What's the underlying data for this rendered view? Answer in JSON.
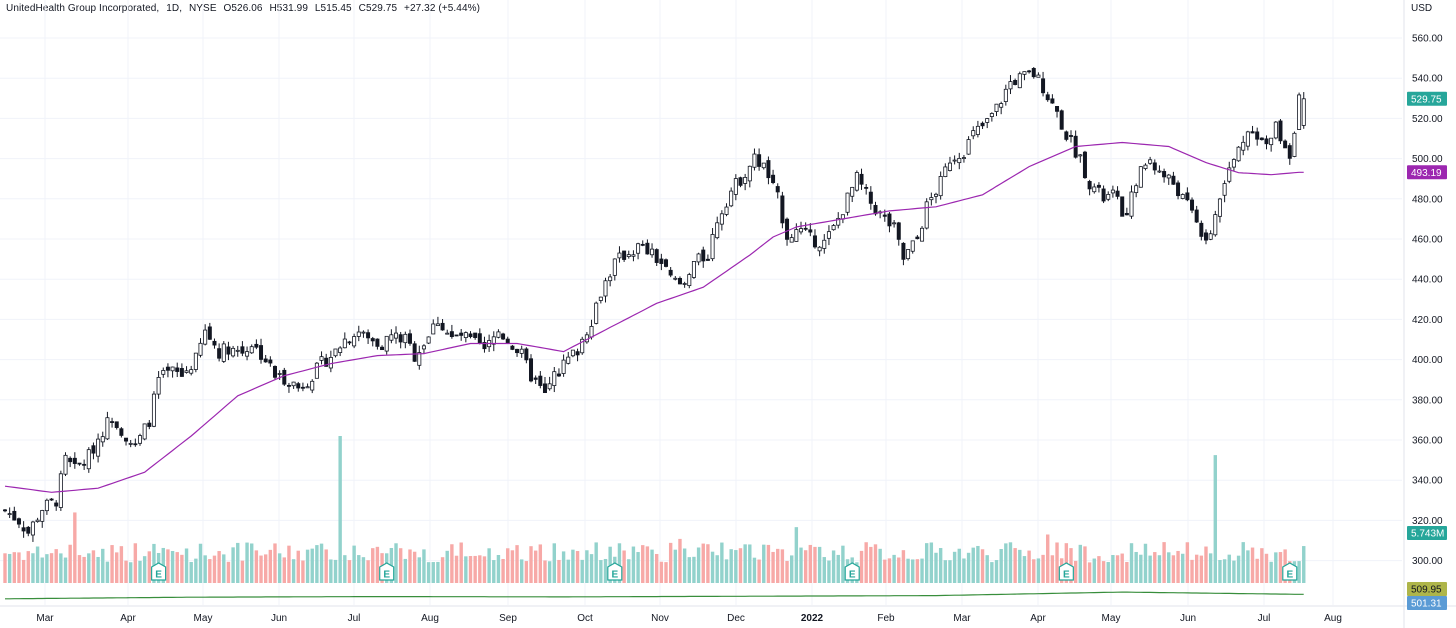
{
  "legend": {
    "symbol": "UnitedHealth Group Incorporated",
    "interval": "1D",
    "exchange": "NYSE",
    "open": "O526.06",
    "high": "H531.99",
    "low": "L515.45",
    "close": "C529.75",
    "change": "+27.32 (+5.44%)"
  },
  "currency": "USD",
  "colors": {
    "up": "#26a69a",
    "down": "#ef5350",
    "wick": "#131722",
    "ma": "#9c27b0",
    "volume_ma": "#388e3c",
    "grid": "#f0f3fa",
    "volume_up": "#92d2cc",
    "volume_down": "#f7a9a7"
  },
  "chart_data": {
    "type": "candlestick",
    "title": "UnitedHealth Group Incorporated, 1D, NYSE",
    "x_tick_labels": [
      "Mar",
      "Apr",
      "May",
      "Jun",
      "Jul",
      "Aug",
      "Sep",
      "Oct",
      "Nov",
      "Dec",
      "2022",
      "Feb",
      "Mar",
      "Apr",
      "May",
      "Jun",
      "Jul",
      "Aug"
    ],
    "y_tick_labels": [
      "300.00",
      "320.00",
      "340.00",
      "360.00",
      "380.00",
      "400.00",
      "420.00",
      "440.00",
      "460.00",
      "480.00",
      "500.00",
      "520.00",
      "540.00",
      "560.00"
    ],
    "ylim": [
      290,
      568
    ],
    "close_path": [
      [
        0,
        325
      ],
      [
        3,
        320
      ],
      [
        5,
        314
      ],
      [
        8,
        326
      ],
      [
        11,
        330
      ],
      [
        13,
        350
      ],
      [
        15,
        345
      ],
      [
        18,
        352
      ],
      [
        21,
        365
      ],
      [
        23,
        372
      ],
      [
        26,
        362
      ],
      [
        28,
        356
      ],
      [
        31,
        370
      ],
      [
        33,
        390
      ],
      [
        36,
        394
      ],
      [
        38,
        392
      ],
      [
        41,
        400
      ],
      [
        43,
        414
      ],
      [
        46,
        404
      ],
      [
        48,
        406
      ],
      [
        51,
        404
      ],
      [
        53,
        408
      ],
      [
        56,
        400
      ],
      [
        58,
        392
      ],
      [
        61,
        390
      ],
      [
        63,
        386
      ],
      [
        66,
        392
      ],
      [
        68,
        398
      ],
      [
        71,
        404
      ],
      [
        73,
        410
      ],
      [
        76,
        414
      ],
      [
        78,
        410
      ],
      [
        81,
        408
      ],
      [
        83,
        412
      ],
      [
        86,
        410
      ],
      [
        88,
        402
      ],
      [
        91,
        412
      ],
      [
        93,
        420
      ],
      [
        96,
        410
      ],
      [
        98,
        412
      ],
      [
        101,
        408
      ],
      [
        103,
        404
      ],
      [
        106,
        414
      ],
      [
        108,
        410
      ],
      [
        111,
        402
      ],
      [
        113,
        392
      ],
      [
        116,
        382
      ],
      [
        118,
        392
      ],
      [
        121,
        400
      ],
      [
        123,
        405
      ],
      [
        126,
        420
      ],
      [
        128,
        434
      ],
      [
        131,
        448
      ],
      [
        133,
        452
      ],
      [
        136,
        456
      ],
      [
        138,
        454
      ],
      [
        141,
        448
      ],
      [
        143,
        440
      ],
      [
        146,
        436
      ],
      [
        148,
        448
      ],
      [
        151,
        452
      ],
      [
        153,
        470
      ],
      [
        156,
        484
      ],
      [
        158,
        490
      ],
      [
        161,
        500
      ],
      [
        163,
        496
      ],
      [
        166,
        480
      ],
      [
        168,
        462
      ],
      [
        171,
        464
      ],
      [
        173,
        460
      ],
      [
        176,
        458
      ],
      [
        178,
        465
      ],
      [
        181,
        480
      ],
      [
        183,
        490
      ],
      [
        186,
        478
      ],
      [
        188,
        472
      ],
      [
        191,
        465
      ],
      [
        193,
        450
      ],
      [
        196,
        460
      ],
      [
        198,
        476
      ],
      [
        201,
        488
      ],
      [
        203,
        500
      ],
      [
        206,
        504
      ],
      [
        208,
        512
      ],
      [
        211,
        518
      ],
      [
        213,
        525
      ],
      [
        216,
        538
      ],
      [
        218,
        540
      ],
      [
        221,
        542
      ],
      [
        223,
        536
      ],
      [
        226,
        522
      ],
      [
        228,
        512
      ],
      [
        231,
        500
      ],
      [
        233,
        488
      ],
      [
        236,
        480
      ],
      [
        238,
        482
      ],
      [
        241,
        470
      ],
      [
        243,
        490
      ],
      [
        246,
        500
      ],
      [
        248,
        493
      ],
      [
        251,
        488
      ],
      [
        253,
        480
      ],
      [
        256,
        470
      ],
      [
        258,
        456
      ],
      [
        261,
        480
      ],
      [
        263,
        494
      ],
      [
        266,
        510
      ],
      [
        268,
        516
      ],
      [
        271,
        505
      ],
      [
        273,
        516
      ],
      [
        276,
        502
      ],
      [
        278,
        529.75
      ]
    ],
    "ma_path": [
      [
        0,
        337
      ],
      [
        10,
        334
      ],
      [
        20,
        336
      ],
      [
        30,
        344
      ],
      [
        40,
        362
      ],
      [
        50,
        382
      ],
      [
        60,
        392
      ],
      [
        70,
        398
      ],
      [
        80,
        402
      ],
      [
        90,
        403
      ],
      [
        100,
        408
      ],
      [
        110,
        408
      ],
      [
        120,
        404
      ],
      [
        130,
        416
      ],
      [
        140,
        428
      ],
      [
        150,
        436
      ],
      [
        160,
        452
      ],
      [
        165,
        461
      ],
      [
        170,
        466
      ],
      [
        180,
        470
      ],
      [
        190,
        474
      ],
      [
        200,
        476
      ],
      [
        210,
        482
      ],
      [
        220,
        496
      ],
      [
        230,
        506
      ],
      [
        240,
        508
      ],
      [
        250,
        506
      ],
      [
        258,
        498
      ],
      [
        265,
        493
      ],
      [
        272,
        492
      ],
      [
        278,
        493.19
      ]
    ],
    "volume_ma_path": [
      [
        0,
        0.2
      ],
      [
        40,
        0.3
      ],
      [
        80,
        0.34
      ],
      [
        120,
        0.32
      ],
      [
        160,
        0.36
      ],
      [
        200,
        0.4
      ],
      [
        240,
        0.62
      ],
      [
        278,
        0.48
      ]
    ],
    "volume_spikes": [
      [
        72,
        1.0
      ],
      [
        260,
        0.87
      ],
      [
        15,
        0.48
      ],
      [
        170,
        0.38
      ],
      [
        224,
        0.33
      ],
      [
        145,
        0.3
      ],
      [
        118,
        0.27
      ]
    ],
    "price_labels": [
      {
        "value": "529.75",
        "color": "#26a69a"
      },
      {
        "value": "493.19",
        "color": "#9c27b0"
      },
      {
        "value": "5.743M",
        "color": "#26a69a"
      },
      {
        "value": "509.95",
        "color": "#aeb54a"
      },
      {
        "value": "501.31",
        "color": "#5b9bd5"
      }
    ],
    "earnings_markers": [
      33,
      82,
      131,
      182,
      228,
      276
    ],
    "earnings_label": "E",
    "grid": true
  }
}
